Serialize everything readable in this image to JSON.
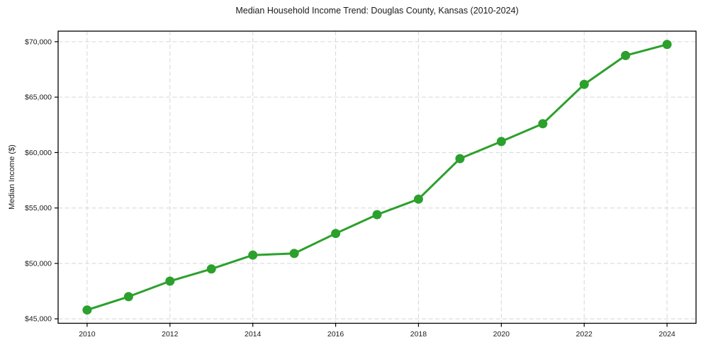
{
  "chart_data": {
    "type": "line",
    "title": "Median Household Income Trend: Douglas County, Kansas (2010-2024)",
    "xlabel": "",
    "ylabel": "Median Income ($)",
    "x": [
      2010,
      2011,
      2012,
      2013,
      2014,
      2015,
      2016,
      2017,
      2018,
      2019,
      2020,
      2021,
      2022,
      2023,
      2024
    ],
    "y": [
      45800,
      47000,
      48400,
      49500,
      50750,
      50900,
      52700,
      54400,
      55800,
      59450,
      61000,
      62600,
      66150,
      68750,
      69750
    ],
    "xtick_values": [
      2010,
      2012,
      2014,
      2016,
      2018,
      2020,
      2022,
      2024
    ],
    "xtick_labels": [
      "2010",
      "2012",
      "2014",
      "2016",
      "2018",
      "2020",
      "2022",
      "2024"
    ],
    "ytick_values": [
      45000,
      50000,
      55000,
      60000,
      65000,
      70000
    ],
    "ytick_labels": [
      "$45,000",
      "$50,000",
      "$55,000",
      "$60,000",
      "$65,000",
      "$70,000"
    ],
    "xlim": [
      2009.3,
      2024.7
    ],
    "ylim": [
      44600,
      70950
    ],
    "grid": true,
    "grid_style": "dashed",
    "legend": "none",
    "line_color": "#2ca02c",
    "marker": "circle",
    "marker_color": "#2ca02c",
    "grid_color": "#d6d6d6",
    "axis_color": "#000000",
    "text_color": "#1a1a1a"
  }
}
